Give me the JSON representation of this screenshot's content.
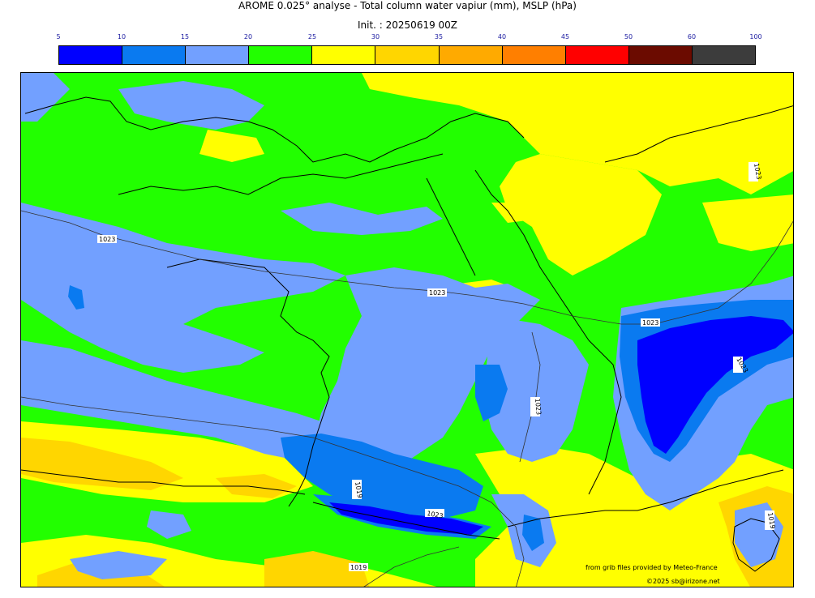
{
  "header": {
    "title": "AROME 0.025° analyse - Total column water vapiur (mm), MSLP (hPa)",
    "init": "Init. : 20250619 00Z"
  },
  "legend": {
    "ticks": [
      "5",
      "10",
      "15",
      "20",
      "25",
      "30",
      "35",
      "40",
      "45",
      "50",
      "60",
      "100"
    ],
    "colors": [
      "#0000ff",
      "#0a7af0",
      "#72a0ff",
      "#22ff00",
      "#ffff00",
      "#ffd600",
      "#ffaa00",
      "#ff7f00",
      "#ff0000",
      "#6b0b00",
      "#3c3c3c"
    ]
  },
  "isobars": {
    "labels": [
      "1023",
      "1023",
      "1023",
      "1023",
      "1023",
      "1023",
      "1019",
      "1023",
      "1019",
      "1019",
      "1013"
    ]
  },
  "credits": {
    "source": "from grib files provided by Meteo-France",
    "copyright": "©2025 sb@irizone.net"
  }
}
